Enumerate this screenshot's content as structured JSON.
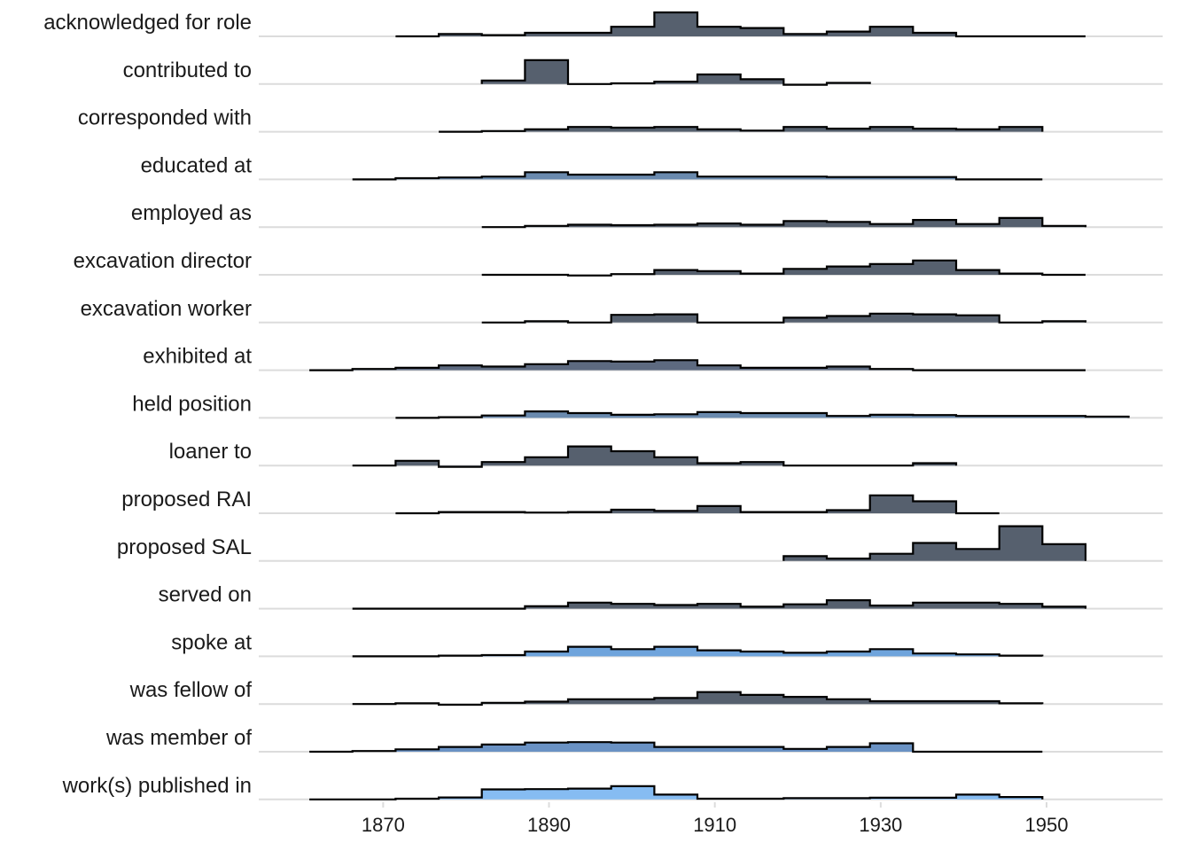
{
  "chart_data": {
    "type": "ridgeline-histogram",
    "title": "",
    "xlabel": "",
    "ylabel": "",
    "xlim": [
      1855,
      1964
    ],
    "x_ticks": [
      1870,
      1890,
      1910,
      1930,
      1950
    ],
    "bin_width": 5.2,
    "grid": "horizontal baselines",
    "legend": "none",
    "fill_scale": {
      "low": "#4a5566",
      "high": "#8cbcf0"
    },
    "series": [
      {
        "name": "acknowledged for role",
        "start": 1871.5,
        "values": [
          0,
          0.1,
          0.05,
          0.15,
          0.15,
          0.4,
          1.0,
          0.4,
          0.35,
          0.1,
          0.2,
          0.4,
          0.15,
          0,
          0,
          0
        ],
        "color": "#56606e"
      },
      {
        "name": "contributed to",
        "start": 1881.9,
        "values": [
          0.15,
          1.0,
          0,
          0.03,
          0.1,
          0.4,
          0.2,
          -0.03,
          0.05
        ],
        "color": "#56606e"
      },
      {
        "name": "corresponded with",
        "start": 1876.7,
        "values": [
          0,
          0.03,
          0.1,
          0.2,
          0.17,
          0.2,
          0.1,
          0.05,
          0.2,
          0.13,
          0.2,
          0.13,
          0.1,
          0.2
        ],
        "color": "#55606e"
      },
      {
        "name": "educated at",
        "start": 1866.3,
        "values": [
          0,
          0.05,
          0.08,
          0.12,
          0.3,
          0.2,
          0.2,
          0.3,
          0.12,
          0.12,
          0.12,
          0.1,
          0.1,
          0.1,
          0,
          0
        ],
        "color": "#6a8aae"
      },
      {
        "name": "employed as",
        "start": 1881.9,
        "values": [
          0,
          0.05,
          0.1,
          0.08,
          0.1,
          0.15,
          0.1,
          0.25,
          0.22,
          0.13,
          0.3,
          0.13,
          0.38,
          0.05
        ],
        "color": "#56606e"
      },
      {
        "name": "excavation director",
        "start": 1881.9,
        "values": [
          0,
          0,
          -0.03,
          0.03,
          0.2,
          0.15,
          0.05,
          0.25,
          0.35,
          0.45,
          0.6,
          0.2,
          0.05,
          0
        ],
        "color": "#56606e"
      },
      {
        "name": "excavation worker",
        "start": 1881.9,
        "values": [
          0,
          0.05,
          0,
          0.32,
          0.34,
          0,
          0,
          0.2,
          0.27,
          0.37,
          0.34,
          0.3,
          0,
          0.05
        ],
        "color": "#56606e"
      },
      {
        "name": "exhibited at",
        "start": 1861.1,
        "values": [
          0,
          0.05,
          0.1,
          0.2,
          0.15,
          0.25,
          0.38,
          0.36,
          0.42,
          0.2,
          0.1,
          0.1,
          0.15,
          0.05,
          0,
          0,
          0,
          0
        ],
        "color": "#5d6a80"
      },
      {
        "name": "held position",
        "start": 1871.5,
        "values": [
          0,
          0.03,
          0.1,
          0.27,
          0.2,
          0.13,
          0.15,
          0.24,
          0.2,
          0.2,
          0.08,
          0.13,
          0.12,
          0.08,
          0.08,
          0.08,
          0.05
        ],
        "color": "#6a8aae"
      },
      {
        "name": "loaner to",
        "start": 1866.3,
        "values": [
          0,
          0.2,
          -0.05,
          0.15,
          0.35,
          0.8,
          0.6,
          0.35,
          0.1,
          0.15,
          0,
          0,
          0,
          0.1
        ],
        "color": "#56606e"
      },
      {
        "name": "proposed RAI",
        "start": 1871.5,
        "values": [
          0,
          0.05,
          0.05,
          0.03,
          0.05,
          0.15,
          0.1,
          0.3,
          0.05,
          0.05,
          0.13,
          0.75,
          0.5,
          0
        ],
        "color": "#56606e"
      },
      {
        "name": "proposed SAL",
        "start": 1918.3,
        "values": [
          0.2,
          0.1,
          0.3,
          0.75,
          0.5,
          1.45,
          0.7
        ],
        "color": "#56606e"
      },
      {
        "name": "served on",
        "start": 1866.3,
        "values": [
          0,
          0,
          0,
          0,
          0.1,
          0.25,
          0.2,
          0.15,
          0.2,
          0.08,
          0.18,
          0.35,
          0.13,
          0.25,
          0.25,
          0.2,
          0.08
        ],
        "color": "#56606e"
      },
      {
        "name": "spoke at",
        "start": 1866.3,
        "values": [
          0,
          0,
          0.03,
          0.05,
          0.2,
          0.4,
          0.3,
          0.4,
          0.25,
          0.2,
          0.15,
          0.2,
          0.3,
          0.12,
          0.08,
          0.03
        ],
        "color": "#6fa4dc"
      },
      {
        "name": "was fellow of",
        "start": 1866.3,
        "values": [
          0,
          0.03,
          -0.03,
          0.05,
          0.1,
          0.2,
          0.2,
          0.25,
          0.5,
          0.38,
          0.3,
          0.2,
          0.12,
          0.12,
          0.12,
          0.03
        ],
        "color": "#56606e"
      },
      {
        "name": "was member of",
        "start": 1861.1,
        "values": [
          0,
          0.03,
          0.1,
          0.2,
          0.3,
          0.38,
          0.4,
          0.38,
          0.2,
          0.2,
          0.2,
          0.12,
          0.2,
          0.35,
          0,
          0,
          0
        ],
        "color": "#6a92c4"
      },
      {
        "name": "work(s) published in",
        "start": 1861.1,
        "values": [
          0,
          0,
          0.03,
          0.08,
          0.42,
          0.43,
          0.45,
          0.55,
          0.2,
          0.03,
          0.03,
          0.05,
          0.05,
          0.07,
          0.07,
          0.2,
          0.1
        ],
        "color": "#86bcf2"
      }
    ]
  }
}
